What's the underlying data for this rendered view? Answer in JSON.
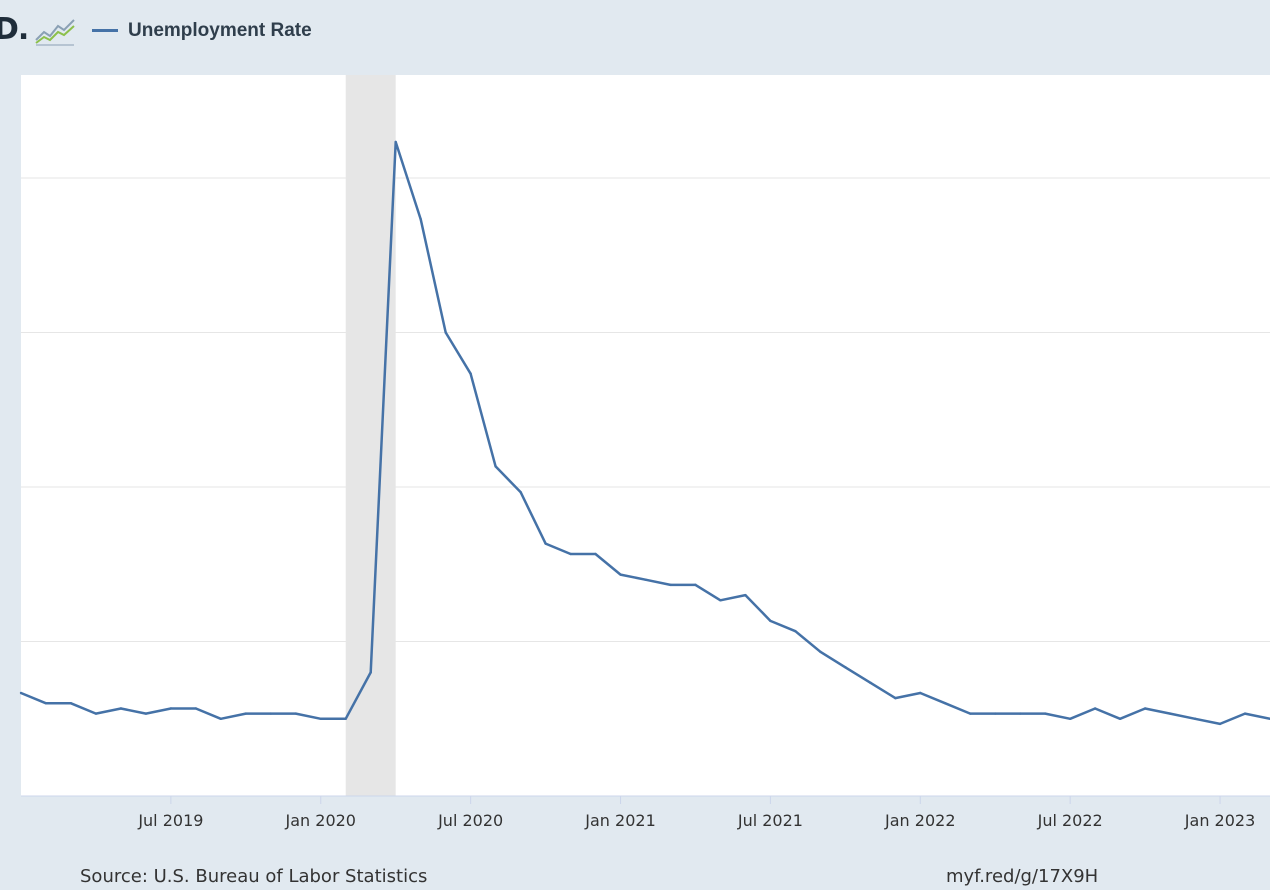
{
  "header": {
    "logo_text": "D.",
    "logo_icon": "line-graph-icon"
  },
  "legend": {
    "label": "Unemployment Rate"
  },
  "footer": {
    "source": "Source: U.S. Bureau of Labor Statistics",
    "link": "myf.red/g/17X9H"
  },
  "colors": {
    "series": "#4572a7",
    "recession_band": "#e6e6e6",
    "grid": "#e6e6e6",
    "background": "#e1e9f0",
    "plot_background": "#ffffff"
  },
  "chart_data": {
    "type": "line",
    "title": "",
    "xlabel": "",
    "ylabel": "",
    "x_tick_labels": [
      "Jul 2019",
      "Jan 2020",
      "Jul 2020",
      "Jan 2021",
      "Jul 2021",
      "Jan 2022",
      "Jul 2022",
      "Jan 2023"
    ],
    "x_tick_dates": [
      "2019-07",
      "2020-01",
      "2020-07",
      "2021-01",
      "2021-07",
      "2022-01",
      "2022-07",
      "2023-01"
    ],
    "x_range": [
      "2019-01",
      "2023-03"
    ],
    "ylim": [
      2,
      16
    ],
    "grid_y_values": [
      2,
      5,
      8,
      11,
      14
    ],
    "y_tick_labels_visible": false,
    "recession": {
      "start": "2020-02",
      "end": "2020-04"
    },
    "legend_position": "top-left",
    "series": [
      {
        "name": "Unemployment Rate",
        "x": [
          "2019-01",
          "2019-02",
          "2019-03",
          "2019-04",
          "2019-05",
          "2019-06",
          "2019-07",
          "2019-08",
          "2019-09",
          "2019-10",
          "2019-11",
          "2019-12",
          "2020-01",
          "2020-02",
          "2020-03",
          "2020-04",
          "2020-05",
          "2020-06",
          "2020-07",
          "2020-08",
          "2020-09",
          "2020-10",
          "2020-11",
          "2020-12",
          "2021-01",
          "2021-02",
          "2021-03",
          "2021-04",
          "2021-05",
          "2021-06",
          "2021-07",
          "2021-08",
          "2021-09",
          "2021-10",
          "2021-11",
          "2021-12",
          "2022-01",
          "2022-02",
          "2022-03",
          "2022-04",
          "2022-05",
          "2022-06",
          "2022-07",
          "2022-08",
          "2022-09",
          "2022-10",
          "2022-11",
          "2022-12",
          "2023-01",
          "2023-02",
          "2023-03"
        ],
        "values": [
          4.0,
          3.8,
          3.8,
          3.6,
          3.7,
          3.6,
          3.7,
          3.7,
          3.5,
          3.6,
          3.6,
          3.6,
          3.5,
          3.5,
          4.4,
          14.7,
          13.2,
          11.0,
          10.2,
          8.4,
          7.9,
          6.9,
          6.7,
          6.7,
          6.3,
          6.2,
          6.1,
          6.1,
          5.8,
          5.9,
          5.4,
          5.2,
          4.8,
          4.5,
          4.2,
          3.9,
          4.0,
          3.8,
          3.6,
          3.6,
          3.6,
          3.6,
          3.5,
          3.7,
          3.5,
          3.7,
          3.6,
          3.5,
          3.4,
          3.6,
          3.5
        ]
      }
    ]
  }
}
